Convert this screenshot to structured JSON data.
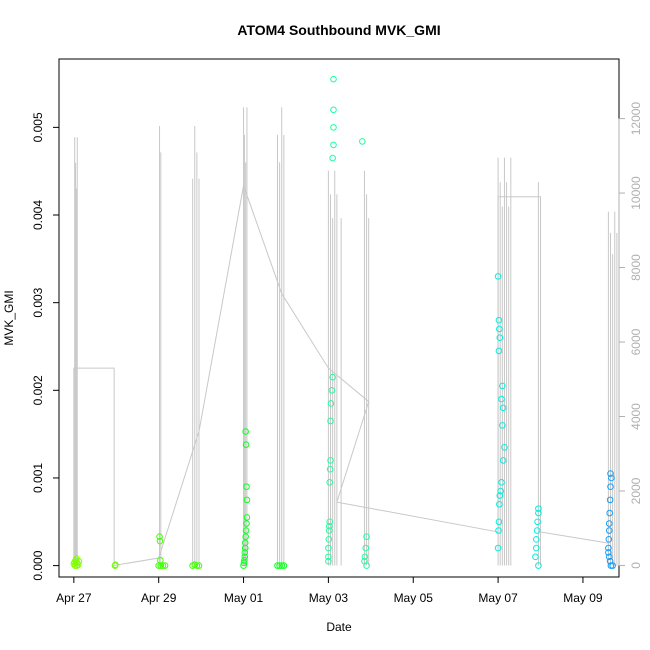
{
  "chart_data": {
    "type": "scatter",
    "title": "ATOM4 Southbound MVK_GMI",
    "xlabel": "Date",
    "ylabel": "MVK_GMI",
    "x_ticks": [
      "Apr 27",
      "Apr 29",
      "May 01",
      "May 03",
      "May 05",
      "May 07",
      "May 09"
    ],
    "x_tick_values": [
      0,
      2,
      4,
      6,
      8,
      10,
      12
    ],
    "xlim": [
      -0.35,
      12.85
    ],
    "y_ticks": [
      "0.000",
      "0.001",
      "0.002",
      "0.003",
      "0.004",
      "0.005"
    ],
    "y_tick_values": [
      0,
      0.001,
      0.002,
      0.003,
      0.004,
      0.005
    ],
    "ylim": [
      -0.00013,
      0.00578
    ],
    "y2_ticks": [
      "0",
      "2000",
      "4000",
      "6000",
      "8000",
      "10000",
      "12000"
    ],
    "y2_tick_values": [
      0,
      2000,
      4000,
      6000,
      8000,
      10000,
      12000
    ],
    "y2lim": [
      -310,
      13600
    ],
    "flights": [
      {
        "x0": 0.0,
        "x1": 0.12,
        "alt_peak": 11500,
        "spikes": [
          0.02,
          0.04,
          0.06,
          0.08
        ],
        "color": "#80ff00",
        "points": [
          [
            0.0,
            2e-05
          ],
          [
            0.02,
            4e-05
          ],
          [
            0.04,
            6e-05
          ],
          [
            0.06,
            8e-05
          ],
          [
            0.08,
            3e-05
          ],
          [
            0.1,
            1e-05
          ],
          [
            0.12,
            5e-05
          ],
          [
            0.03,
            0.0
          ],
          [
            0.07,
            0.0
          ]
        ]
      },
      {
        "x0": 0.95,
        "x1": 1.0,
        "alt_peak": 0,
        "spikes": [],
        "color": "#70ff00",
        "points": [
          [
            0.97,
            0.0
          ],
          [
            0.98,
            1e-05
          ]
        ]
      },
      {
        "x0": 2.0,
        "x1": 2.95,
        "alt_peak": 11800,
        "spikes": [
          2.02,
          2.05,
          2.8,
          2.85,
          2.9,
          2.95
        ],
        "color": "#40ff00",
        "points": [
          [
            2.0,
            0.0
          ],
          [
            2.02,
            0.00033
          ],
          [
            2.03,
            0.00028
          ],
          [
            2.04,
            6e-05
          ],
          [
            2.05,
            0.0
          ],
          [
            2.8,
            0.0
          ],
          [
            2.85,
            1e-05
          ],
          [
            2.9,
            0.0
          ],
          [
            2.95,
            0.0
          ],
          [
            2.1,
            0.0
          ],
          [
            2.15,
            0.0
          ]
        ]
      },
      {
        "x0": 4.0,
        "x1": 4.95,
        "alt_peak": 12300,
        "spikes": [
          4.0,
          4.02,
          4.05,
          4.08,
          4.8,
          4.85,
          4.9,
          4.95
        ],
        "color": "#10ff20",
        "points": [
          [
            4.05,
            0.00153
          ],
          [
            4.06,
            0.00138
          ],
          [
            4.07,
            0.0009
          ],
          [
            4.08,
            0.00075
          ],
          [
            4.08,
            0.00055
          ],
          [
            4.07,
            0.00048
          ],
          [
            4.06,
            0.0004
          ],
          [
            4.05,
            0.00033
          ],
          [
            4.04,
            0.00026
          ],
          [
            4.04,
            0.0002
          ],
          [
            4.03,
            0.00015
          ],
          [
            4.03,
            0.0001
          ],
          [
            4.02,
            6e-05
          ],
          [
            4.01,
            3e-05
          ],
          [
            4.0,
            0.0
          ],
          [
            4.8,
            0.0
          ],
          [
            4.85,
            0.0
          ],
          [
            4.9,
            0.0
          ],
          [
            4.95,
            0.0
          ]
        ]
      },
      {
        "x0": 6.0,
        "x1": 6.95,
        "alt_peak": 10600,
        "spikes": [
          6.0,
          6.05,
          6.1,
          6.15,
          6.2,
          6.3,
          6.85,
          6.9,
          6.95
        ],
        "color": "#20ffa0",
        "points": [
          [
            6.12,
            0.00555
          ],
          [
            6.12,
            0.0052
          ],
          [
            6.12,
            0.005
          ],
          [
            6.12,
            0.0048
          ],
          [
            6.1,
            0.00465
          ],
          [
            6.8,
            0.00484
          ],
          [
            6.1,
            0.00215
          ],
          [
            6.08,
            0.002
          ],
          [
            6.06,
            0.00185
          ],
          [
            6.05,
            0.00165
          ],
          [
            6.05,
            0.0012
          ],
          [
            6.04,
            0.0011
          ],
          [
            6.03,
            0.00095
          ],
          [
            6.03,
            0.0005
          ],
          [
            6.02,
            0.00045
          ],
          [
            6.02,
            0.0004
          ],
          [
            6.01,
            0.0003
          ],
          [
            6.0,
            0.0002
          ],
          [
            6.0,
            0.0001
          ],
          [
            6.0,
            5e-05
          ],
          [
            6.9,
            0.00033
          ],
          [
            6.88,
            0.0002
          ],
          [
            6.86,
            0.0001
          ],
          [
            6.85,
            5e-05
          ],
          [
            6.9,
            0.0
          ]
        ]
      },
      {
        "x0": 10.0,
        "x1": 11.0,
        "alt_peak": 10950,
        "spikes": [
          10.0,
          10.05,
          10.1,
          10.15,
          10.2,
          10.25,
          10.3,
          10.95,
          11.0
        ],
        "color": "#00f0e0",
        "points": [
          [
            10.0,
            0.0033
          ],
          [
            10.02,
            0.0028
          ],
          [
            10.03,
            0.0027
          ],
          [
            10.04,
            0.0026
          ],
          [
            10.02,
            0.00245
          ],
          [
            10.1,
            0.00205
          ],
          [
            10.08,
            0.0019
          ],
          [
            10.12,
            0.0018
          ],
          [
            10.1,
            0.0016
          ],
          [
            10.15,
            0.00135
          ],
          [
            10.12,
            0.0012
          ],
          [
            10.08,
            0.00095
          ],
          [
            10.06,
            0.00085
          ],
          [
            10.04,
            0.0008
          ],
          [
            10.03,
            0.0007
          ],
          [
            10.02,
            0.0005
          ],
          [
            10.01,
            0.0004
          ],
          [
            10.0,
            0.0002
          ],
          [
            10.95,
            0.00065
          ],
          [
            10.95,
            0.0006
          ],
          [
            10.93,
            0.0005
          ],
          [
            10.92,
            0.0004
          ],
          [
            10.9,
            0.0003
          ],
          [
            10.9,
            0.0002
          ],
          [
            10.88,
            0.0001
          ],
          [
            10.95,
            0.0
          ]
        ]
      },
      {
        "x0": 12.6,
        "x1": 12.8,
        "alt_peak": 9500,
        "spikes": [
          12.6,
          12.65,
          12.7,
          12.75,
          12.8
        ],
        "color": "#10a0ff",
        "points": [
          [
            12.65,
            0.00105
          ],
          [
            12.67,
            0.001
          ],
          [
            12.65,
            0.0009
          ],
          [
            12.64,
            0.00075
          ],
          [
            12.63,
            0.0006
          ],
          [
            12.62,
            0.00048
          ],
          [
            12.62,
            0.0004
          ],
          [
            12.61,
            0.0003
          ],
          [
            12.6,
            0.0002
          ],
          [
            12.6,
            0.00015
          ],
          [
            12.62,
            0.0001
          ],
          [
            12.64,
            5e-05
          ],
          [
            12.66,
            0.0
          ],
          [
            12.7,
            0.0
          ]
        ]
      }
    ],
    "altitude_series": "right-axis gray lines",
    "grid": false
  }
}
